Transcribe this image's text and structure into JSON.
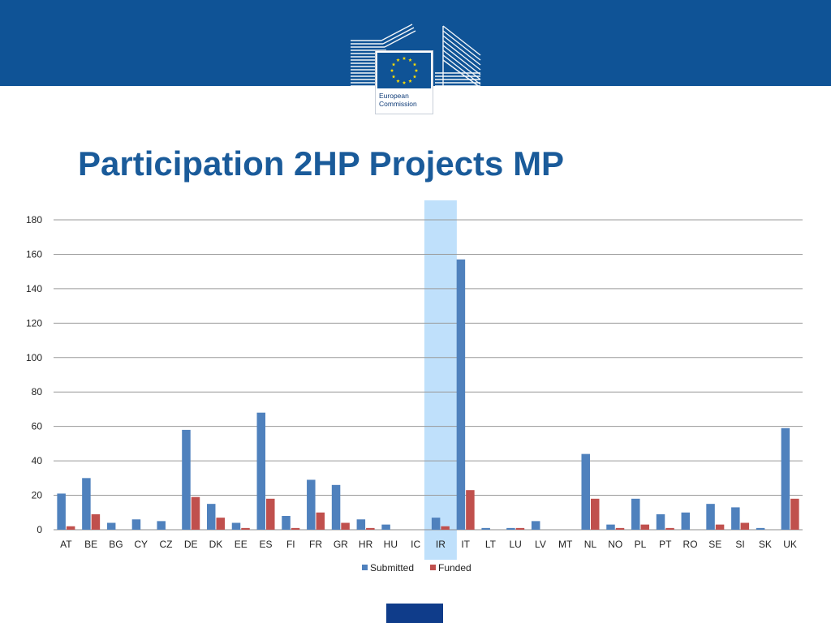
{
  "title": "Participation 2HP Projects MP",
  "logo": {
    "line1": "European",
    "line2": "Commission"
  },
  "colors": {
    "header": "#0f5396",
    "submitted": "#4f81bd",
    "funded": "#c0504d",
    "highlight": "#bfe0fb",
    "title": "#1a5b9a"
  },
  "chart_data": {
    "type": "bar",
    "title": "",
    "xlabel": "",
    "ylabel": "",
    "ylim": [
      0,
      180
    ],
    "yticks": [
      0,
      20,
      40,
      60,
      80,
      100,
      120,
      140,
      160,
      180
    ],
    "grid": true,
    "legend_position": "bottom",
    "highlight_category": "IR",
    "categories": [
      "AT",
      "BE",
      "BG",
      "CY",
      "CZ",
      "DE",
      "DK",
      "EE",
      "ES",
      "FI",
      "FR",
      "GR",
      "HR",
      "HU",
      "IC",
      "IR",
      "IT",
      "LT",
      "LU",
      "LV",
      "MT",
      "NL",
      "NO",
      "PL",
      "PT",
      "RO",
      "SE",
      "SI",
      "SK",
      "UK"
    ],
    "series": [
      {
        "name": "Submitted",
        "color": "#4f81bd",
        "values": [
          21,
          30,
          4,
          6,
          5,
          58,
          15,
          4,
          68,
          8,
          29,
          26,
          6,
          3,
          0,
          7,
          157,
          1,
          1,
          5,
          0,
          44,
          3,
          18,
          9,
          10,
          15,
          13,
          1,
          59
        ]
      },
      {
        "name": "Funded",
        "color": "#c0504d",
        "values": [
          2,
          9,
          0,
          0,
          0,
          19,
          7,
          1,
          18,
          1,
          10,
          4,
          1,
          0,
          0,
          2,
          23,
          0,
          1,
          0,
          0,
          18,
          1,
          3,
          1,
          0,
          3,
          4,
          0,
          18
        ]
      }
    ]
  }
}
